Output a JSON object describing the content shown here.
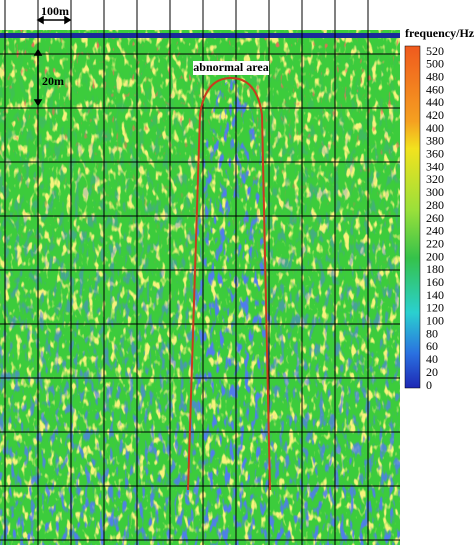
{
  "figure": {
    "annotations": {
      "horizontal_scale": "100m",
      "vertical_scale": "20m",
      "region": "abnormal area"
    },
    "colorbar": {
      "title": "frequency/Hz",
      "ticks": [
        520,
        500,
        480,
        460,
        440,
        420,
        400,
        380,
        360,
        340,
        320,
        300,
        280,
        260,
        240,
        220,
        200,
        180,
        160,
        140,
        120,
        100,
        80,
        60,
        40,
        20,
        0
      ]
    }
  }
}
